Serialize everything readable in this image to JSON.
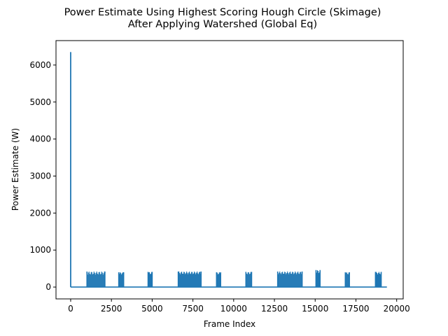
{
  "chart_data": {
    "type": "line",
    "title": "Power Estimate Using Highest Scoring Hough Circle (Skimage)",
    "subtitle": "After Applying Watershed (Global Eq)",
    "xlabel": "Frame Index",
    "ylabel": "Power Estimate (W)",
    "xlim": [
      -900,
      20400
    ],
    "ylim": [
      -320,
      6660
    ],
    "xticks": [
      0,
      2500,
      5000,
      7500,
      10000,
      12500,
      15000,
      17500,
      20000
    ],
    "yticks": [
      0,
      1000,
      2000,
      3000,
      4000,
      5000,
      6000
    ],
    "grid": false,
    "legend": "none",
    "series": [
      {
        "color": "#1f77b4",
        "baseline": 0,
        "spike": {
          "x": 0,
          "y": 6350
        },
        "baseline_extent": [
          0,
          19400
        ],
        "bursts": [
          {
            "x_start": 1000,
            "x_end": 2100,
            "y_max": 420,
            "y_min": 280
          },
          {
            "x_start": 2950,
            "x_end": 3250,
            "y_max": 400,
            "y_min": 300
          },
          {
            "x_start": 4750,
            "x_end": 5000,
            "y_max": 410,
            "y_min": 300
          },
          {
            "x_start": 6600,
            "x_end": 8000,
            "y_max": 420,
            "y_min": 300
          },
          {
            "x_start": 8950,
            "x_end": 9200,
            "y_max": 400,
            "y_min": 300
          },
          {
            "x_start": 10750,
            "x_end": 11100,
            "y_max": 410,
            "y_min": 300
          },
          {
            "x_start": 12700,
            "x_end": 14200,
            "y_max": 420,
            "y_min": 300
          },
          {
            "x_start": 15050,
            "x_end": 15300,
            "y_max": 460,
            "y_min": 320
          },
          {
            "x_start": 16850,
            "x_end": 17100,
            "y_max": 400,
            "y_min": 300
          },
          {
            "x_start": 18700,
            "x_end": 19050,
            "y_max": 410,
            "y_min": 300
          }
        ]
      }
    ]
  }
}
